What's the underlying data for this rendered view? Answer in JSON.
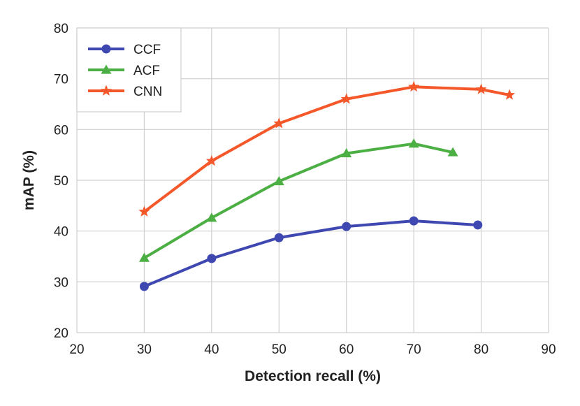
{
  "chart_data": {
    "type": "line",
    "title": "",
    "xlabel": "Detection recall (%)",
    "ylabel": "mAP (%)",
    "xlim": [
      20,
      90
    ],
    "ylim": [
      20,
      80
    ],
    "xticks": [
      20,
      30,
      40,
      50,
      60,
      70,
      80,
      90
    ],
    "yticks": [
      20,
      30,
      40,
      50,
      60,
      70,
      80
    ],
    "grid": true,
    "legend_position": "top-left",
    "series": [
      {
        "name": "CCF",
        "color": "#3f48b1",
        "marker": "circle",
        "x": [
          30,
          40,
          50,
          60,
          70,
          79.5
        ],
        "y": [
          29.1,
          34.6,
          38.7,
          40.9,
          42.0,
          41.2
        ]
      },
      {
        "name": "ACF",
        "color": "#4caf43",
        "marker": "triangle",
        "x": [
          30,
          40,
          50,
          60,
          70,
          75.8
        ],
        "y": [
          34.7,
          42.6,
          49.8,
          55.3,
          57.2,
          55.5
        ]
      },
      {
        "name": "CNN",
        "color": "#f4582a",
        "marker": "star",
        "x": [
          30,
          40,
          50,
          60,
          70,
          80,
          84.2
        ],
        "y": [
          43.8,
          53.8,
          61.2,
          66.0,
          68.4,
          67.9,
          66.8
        ]
      }
    ]
  }
}
